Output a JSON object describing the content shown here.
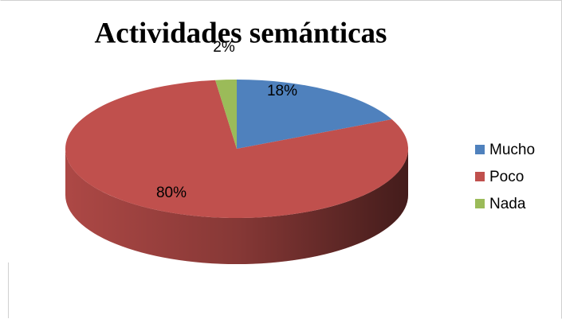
{
  "chart_data": {
    "type": "pie",
    "title": "Actividades semánticas",
    "categories": [
      "Mucho",
      "Poco",
      "Nada"
    ],
    "values": [
      18,
      80,
      2
    ],
    "value_labels": [
      "18%",
      "80%",
      "2%"
    ],
    "colors": [
      "#4f81bd",
      "#c0504d",
      "#9bbb59"
    ],
    "legend": "right"
  }
}
